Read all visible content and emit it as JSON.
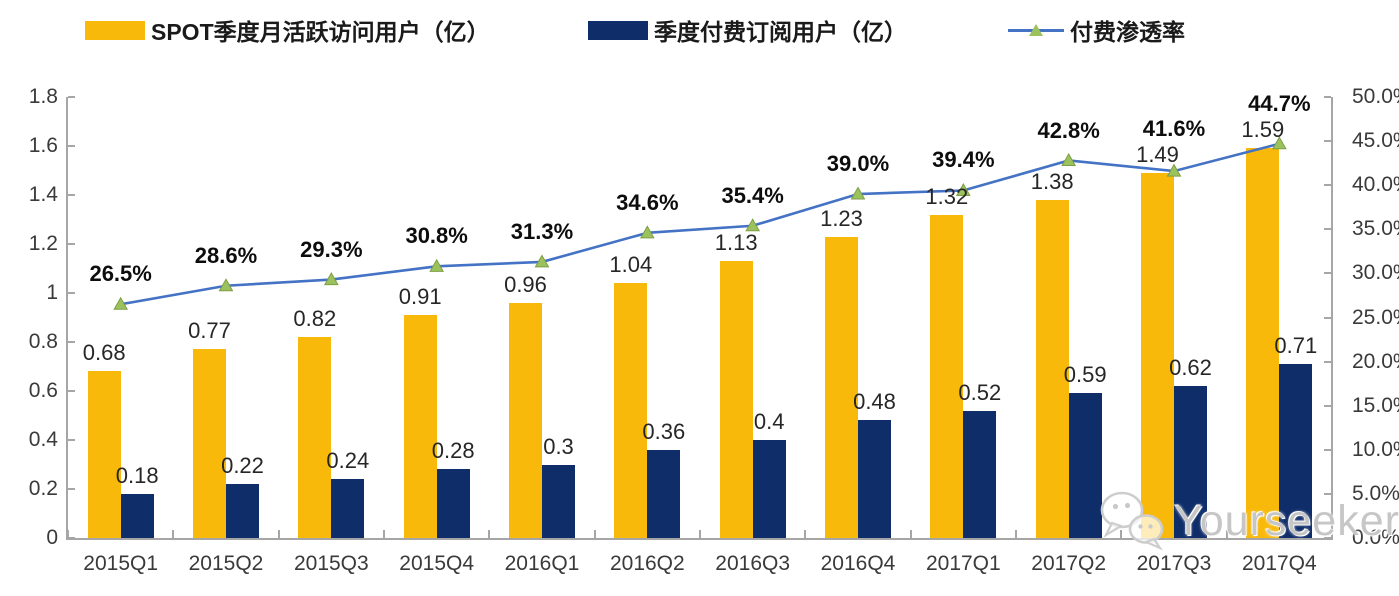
{
  "legend": {
    "items": [
      {
        "label": "SPOT季度月活跃访问用户（亿）",
        "swatch": "bar",
        "color": "#F9B90B"
      },
      {
        "label": "季度付费订阅用户（亿）",
        "swatch": "bar",
        "color": "#0F2D69"
      },
      {
        "label": "付费渗透率",
        "swatch": "line-triangle",
        "line_color": "#4472C4",
        "marker_color": "#9CC25E"
      }
    ]
  },
  "watermark": {
    "text": "Yourseeker",
    "icon": "wechat-icon"
  },
  "chart_data": {
    "type": "bar",
    "subtype": "grouped-bars-with-line-overlay",
    "categories": [
      "2015Q1",
      "2015Q2",
      "2015Q3",
      "2015Q4",
      "2016Q1",
      "2016Q2",
      "2016Q3",
      "2016Q4",
      "2017Q1",
      "2017Q2",
      "2017Q3",
      "2017Q4"
    ],
    "series": [
      {
        "name": "SPOT季度月活跃访问用户（亿）",
        "type": "bar",
        "axis": "left",
        "color": "#F9B90B",
        "values": [
          0.68,
          0.77,
          0.82,
          0.91,
          0.96,
          1.04,
          1.13,
          1.23,
          1.32,
          1.38,
          1.49,
          1.59
        ],
        "labels": [
          "0.68",
          "0.77",
          "0.82",
          "0.91",
          "0.96",
          "1.04",
          "1.13",
          "1.23",
          "1.32",
          "1.38",
          "1.49",
          "1.59"
        ]
      },
      {
        "name": "季度付费订阅用户（亿）",
        "type": "bar",
        "axis": "left",
        "color": "#0F2D69",
        "values": [
          0.18,
          0.22,
          0.24,
          0.28,
          0.3,
          0.36,
          0.4,
          0.48,
          0.52,
          0.59,
          0.62,
          0.71
        ],
        "labels": [
          "0.18",
          "0.22",
          "0.24",
          "0.28",
          "0.3",
          "0.36",
          "0.4",
          "0.48",
          "0.52",
          "0.59",
          "0.62",
          "0.71"
        ]
      },
      {
        "name": "付费渗透率",
        "type": "line",
        "axis": "right",
        "color": "#4472C4",
        "marker": "triangle",
        "marker_color": "#9CC25E",
        "values": [
          26.5,
          28.6,
          29.3,
          30.8,
          31.3,
          34.6,
          35.4,
          39.0,
          39.4,
          42.8,
          41.6,
          44.7
        ],
        "labels": [
          "26.5%",
          "28.6%",
          "29.3%",
          "30.8%",
          "31.3%",
          "34.6%",
          "35.4%",
          "39.0%",
          "39.4%",
          "42.8%",
          "41.6%",
          "44.7%"
        ]
      }
    ],
    "left_axis": {
      "min": 0,
      "max": 1.8,
      "ticks": [
        "0",
        "0.2",
        "0.4",
        "0.6",
        "0.8",
        "1",
        "1.2",
        "1.4",
        "1.6",
        "1.8"
      ]
    },
    "right_axis": {
      "min": 0,
      "max": 50,
      "ticks": [
        "0.0%",
        "5.0%",
        "10.0%",
        "15.0%",
        "20.0%",
        "25.0%",
        "30.0%",
        "35.0%",
        "40.0%",
        "45.0%",
        "50.0%"
      ]
    },
    "title": "",
    "xlabel": "",
    "ylabel": "",
    "grid": false,
    "legend_position": "top"
  }
}
